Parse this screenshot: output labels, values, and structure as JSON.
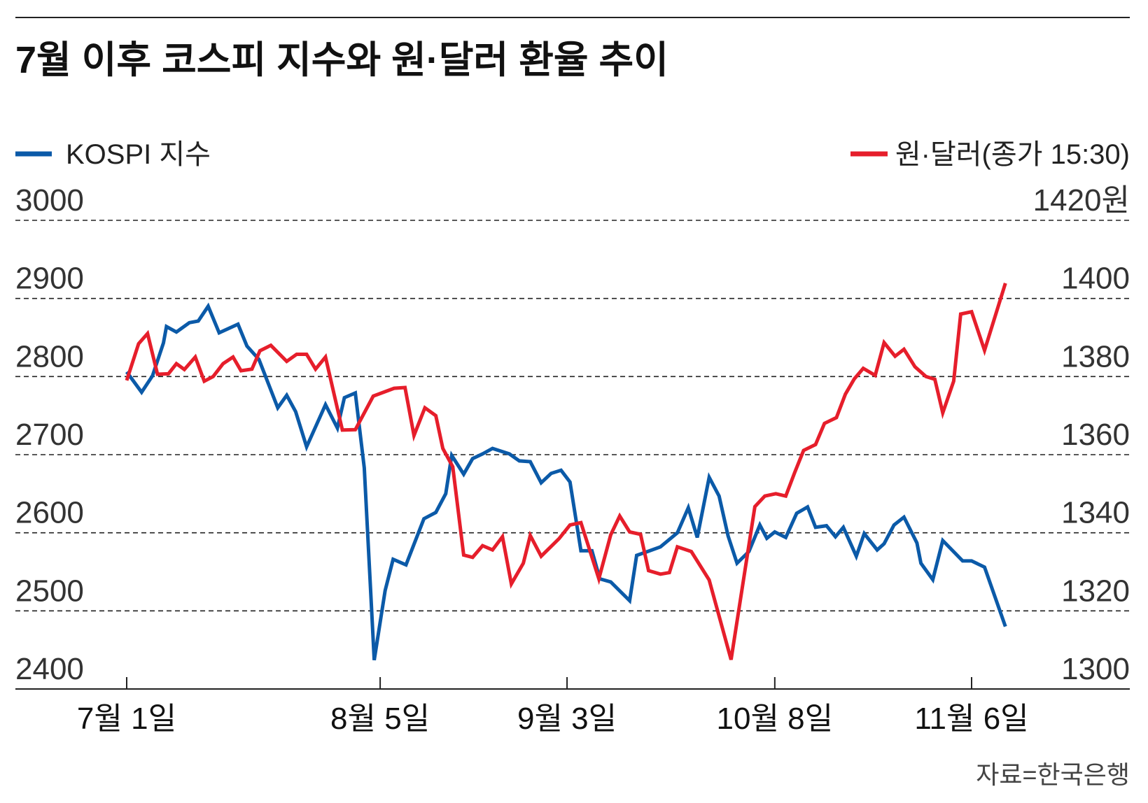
{
  "chart_data": {
    "type": "line",
    "title": "7월 이후 코스피 지수와 원·달러 환율 추이",
    "source": "자료=한국은행",
    "x_unit": "trading-day index from July 1",
    "x_ticks": [
      {
        "label": "7월 1일",
        "x": 0
      },
      {
        "label": "8월 5일",
        "x": 25.5
      },
      {
        "label": "9월 3일",
        "x": 44.3
      },
      {
        "label": "10월 8일",
        "x": 65.2
      },
      {
        "label": "11월 6일",
        "x": 85
      }
    ],
    "xlim": [
      0,
      88.4
    ],
    "left_axis": {
      "ylim": [
        2400,
        3000
      ],
      "ticks": [
        "3000",
        "2900",
        "2800",
        "2700",
        "2600",
        "2500",
        "2400"
      ]
    },
    "right_axis": {
      "ylim": [
        1300,
        1420
      ],
      "ticks": [
        "1420원",
        "1400",
        "1380",
        "1360",
        "1340",
        "1320",
        "1300"
      ]
    },
    "grid": true,
    "series": [
      {
        "name": "KOSPI 지수",
        "axis": "left",
        "color": "#0b5aa8",
        "legend": "top-left",
        "points": [
          [
            0,
            2806
          ],
          [
            1.5,
            2780
          ],
          [
            2.6,
            2801
          ],
          [
            3.7,
            2843
          ],
          [
            4,
            2864
          ],
          [
            5,
            2857
          ],
          [
            6.3,
            2869
          ],
          [
            7.2,
            2871
          ],
          [
            8.2,
            2890
          ],
          [
            9.3,
            2856
          ],
          [
            11.2,
            2867
          ],
          [
            12.1,
            2839
          ],
          [
            13.3,
            2822
          ],
          [
            15.2,
            2760
          ],
          [
            16.1,
            2776
          ],
          [
            17,
            2755
          ],
          [
            18.1,
            2710
          ],
          [
            20,
            2764
          ],
          [
            21.2,
            2734
          ],
          [
            21.9,
            2773
          ],
          [
            23,
            2779
          ],
          [
            23.9,
            2683
          ],
          [
            24.9,
            2437
          ],
          [
            26,
            2526
          ],
          [
            26.8,
            2566
          ],
          [
            28.1,
            2559
          ],
          [
            29.9,
            2618
          ],
          [
            31.1,
            2626
          ],
          [
            32.1,
            2650
          ],
          [
            32.7,
            2699
          ],
          [
            33.9,
            2675
          ],
          [
            34.8,
            2695
          ],
          [
            35.8,
            2701
          ],
          [
            36.8,
            2708
          ],
          [
            38.5,
            2701
          ],
          [
            39.5,
            2692
          ],
          [
            40.6,
            2691
          ],
          [
            41.7,
            2664
          ],
          [
            42.7,
            2676
          ],
          [
            43.7,
            2680
          ],
          [
            44.6,
            2665
          ],
          [
            45.7,
            2577
          ],
          [
            46.8,
            2577
          ],
          [
            47.6,
            2541
          ],
          [
            48.7,
            2537
          ],
          [
            50.6,
            2513
          ],
          [
            51.3,
            2571
          ],
          [
            52.4,
            2576
          ],
          [
            53.7,
            2582
          ],
          [
            55.4,
            2600
          ],
          [
            56.5,
            2632
          ],
          [
            57.4,
            2594
          ],
          [
            58.6,
            2671
          ],
          [
            59.6,
            2647
          ],
          [
            60.5,
            2596
          ],
          [
            61.4,
            2561
          ],
          [
            62.6,
            2576
          ],
          [
            63.7,
            2610
          ],
          [
            64.4,
            2593
          ],
          [
            65.2,
            2601
          ],
          [
            66.3,
            2594
          ],
          [
            67.4,
            2625
          ],
          [
            68.5,
            2633
          ],
          [
            69.3,
            2607
          ],
          [
            70.4,
            2609
          ],
          [
            71.3,
            2595
          ],
          [
            72.1,
            2607
          ],
          [
            73.4,
            2570
          ],
          [
            74.2,
            2599
          ],
          [
            75.5,
            2578
          ],
          [
            76.2,
            2586
          ],
          [
            77.2,
            2610
          ],
          [
            78.2,
            2620
          ],
          [
            79.5,
            2587
          ],
          [
            79.9,
            2561
          ],
          [
            81.1,
            2540
          ],
          [
            82.1,
            2590
          ],
          [
            84.1,
            2564
          ],
          [
            85,
            2564
          ],
          [
            86.3,
            2556
          ],
          [
            88.4,
            2480
          ]
        ]
      },
      {
        "name": "원·달러(종가 15:30)",
        "axis": "right",
        "color": "#e61e2b",
        "legend": "top-right",
        "points": [
          [
            0,
            1379
          ],
          [
            1.2,
            1388.4
          ],
          [
            2.1,
            1391
          ],
          [
            3.1,
            1380.6
          ],
          [
            4.2,
            1380.7
          ],
          [
            5,
            1383.3
          ],
          [
            5.8,
            1381.8
          ],
          [
            6.9,
            1385
          ],
          [
            7.8,
            1378.8
          ],
          [
            8.7,
            1380
          ],
          [
            9.7,
            1383.3
          ],
          [
            10.7,
            1385
          ],
          [
            11.5,
            1381.5
          ],
          [
            12.6,
            1381.9
          ],
          [
            13.4,
            1386.6
          ],
          [
            14.5,
            1388
          ],
          [
            16.1,
            1383.9
          ],
          [
            17.1,
            1385.7
          ],
          [
            18.1,
            1385.7
          ],
          [
            19,
            1381.9
          ],
          [
            20,
            1385
          ],
          [
            21.7,
            1366.3
          ],
          [
            23,
            1366.4
          ],
          [
            24.8,
            1375
          ],
          [
            26.9,
            1377
          ],
          [
            28,
            1377.2
          ],
          [
            28.9,
            1364.9
          ],
          [
            30,
            1372
          ],
          [
            31.1,
            1370
          ],
          [
            31.8,
            1361.6
          ],
          [
            32.8,
            1356.9
          ],
          [
            33.9,
            1334.3
          ],
          [
            34.8,
            1333.7
          ],
          [
            35.8,
            1336.7
          ],
          [
            36.8,
            1335.6
          ],
          [
            37.8,
            1339
          ],
          [
            38.7,
            1326.9
          ],
          [
            39.9,
            1332.2
          ],
          [
            40.6,
            1339.3
          ],
          [
            41.7,
            1334
          ],
          [
            43.5,
            1338.5
          ],
          [
            44.6,
            1342
          ],
          [
            45.7,
            1342.6
          ],
          [
            47.5,
            1328.2
          ],
          [
            48.7,
            1339.5
          ],
          [
            49.6,
            1344.3
          ],
          [
            50.6,
            1340.2
          ],
          [
            51.7,
            1339.6
          ],
          [
            52.5,
            1330.3
          ],
          [
            53.7,
            1329.4
          ],
          [
            54.6,
            1329.8
          ],
          [
            55.4,
            1336.4
          ],
          [
            56.8,
            1335.2
          ],
          [
            58.6,
            1327.9
          ],
          [
            60.8,
            1307.5
          ],
          [
            63.2,
            1346.7
          ],
          [
            64.2,
            1349.4
          ],
          [
            65.3,
            1350
          ],
          [
            66.3,
            1349.4
          ],
          [
            67.2,
            1355.4
          ],
          [
            68.1,
            1361.1
          ],
          [
            69.3,
            1362.6
          ],
          [
            70.2,
            1368
          ],
          [
            71.4,
            1369.5
          ],
          [
            72.3,
            1375.5
          ],
          [
            73.2,
            1379.4
          ],
          [
            74.1,
            1382.1
          ],
          [
            75.3,
            1380.3
          ],
          [
            76.2,
            1388.7
          ],
          [
            77.3,
            1385.2
          ],
          [
            78.2,
            1387
          ],
          [
            79.3,
            1382.5
          ],
          [
            80.4,
            1380
          ],
          [
            81.3,
            1379.3
          ],
          [
            82.1,
            1370.7
          ],
          [
            83.2,
            1378.8
          ],
          [
            83.9,
            1396
          ],
          [
            85,
            1396.6
          ],
          [
            86.3,
            1386.7
          ],
          [
            88.4,
            1403.9
          ]
        ]
      }
    ]
  }
}
